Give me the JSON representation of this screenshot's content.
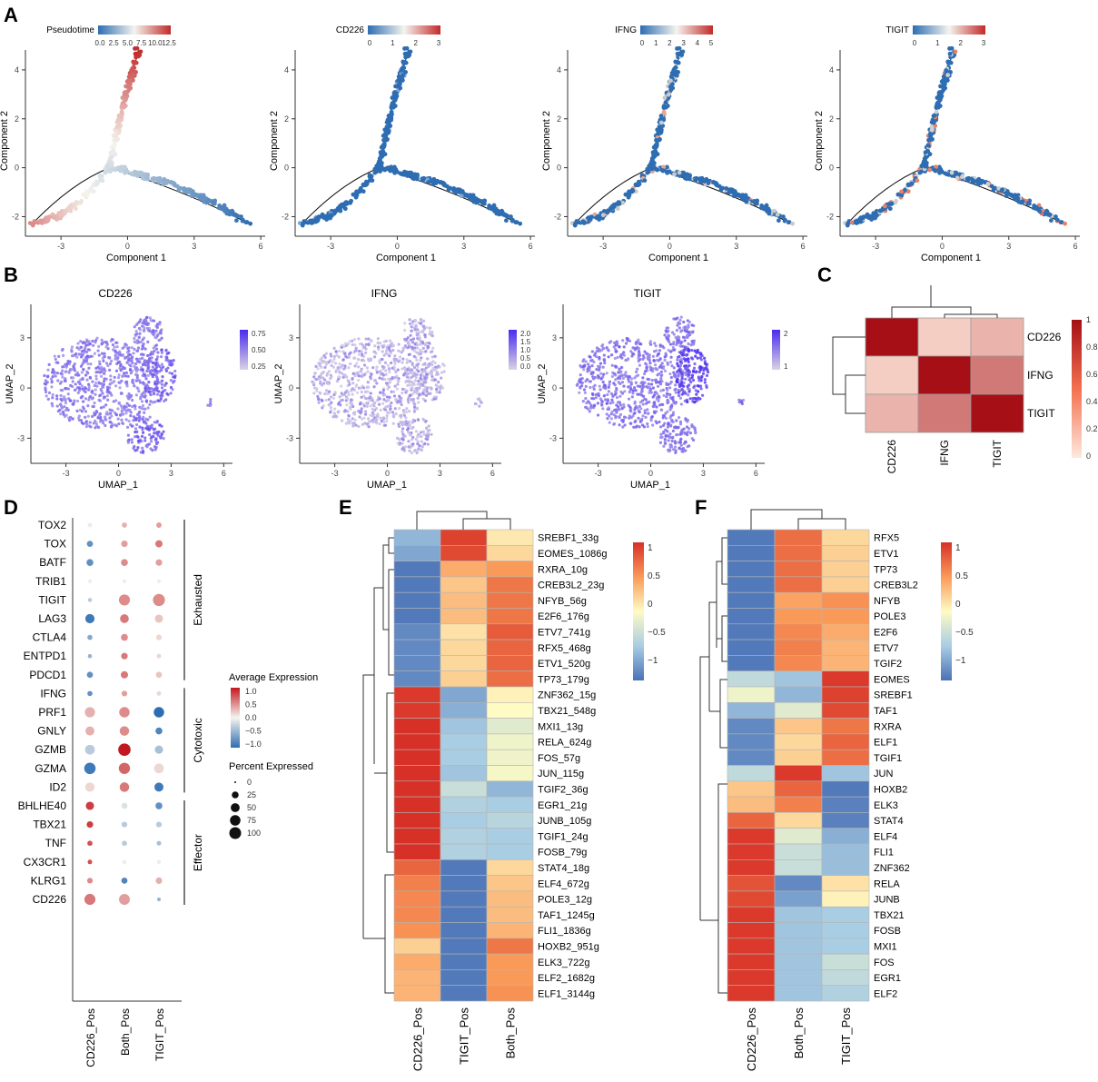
{
  "panels": {
    "A": "A",
    "B": "B",
    "C": "C",
    "D": "D",
    "E": "E",
    "F": "F"
  },
  "colors": {
    "low": "#2e6db2",
    "mid": "#f5f4ee",
    "high": "#c22a2a",
    "heat_low": "#4a7ab8",
    "heat_mid": "#fefbc4",
    "heat_high": "#d73027",
    "umap_low": "#d9d3e3",
    "umap_high": "#4b2bf0",
    "corr_low": "#fde3d6",
    "corr_high": "#a50f15"
  },
  "chart_data": [
    {
      "id": "A",
      "type": "scatter",
      "xlabel": "Component 1",
      "ylabel": "Component 2",
      "xticks": [
        "-3",
        "0",
        "3",
        "6"
      ],
      "yticks": [
        "-2",
        "0",
        "2",
        "4"
      ],
      "xlim": [
        -4.6,
        6.2
      ],
      "ylim": [
        -2.8,
        5.0
      ],
      "subplots": [
        {
          "legend_title": "Pseudotime",
          "legend_ticks": [
            "0.0",
            "2.5",
            "5.0",
            "7.5",
            "10.0",
            "12.5"
          ],
          "mode": "pseudotime"
        },
        {
          "legend_title": "CD226",
          "legend_ticks": [
            "0",
            "1",
            "2",
            "3"
          ],
          "mode": "low"
        },
        {
          "legend_title": "IFNG",
          "legend_ticks": [
            "0",
            "1",
            "2",
            "3",
            "4",
            "5"
          ],
          "mode": "mixed"
        },
        {
          "legend_title": "TIGIT",
          "legend_ticks": [
            "0",
            "1",
            "2",
            "3"
          ],
          "mode": "mixed2"
        }
      ]
    },
    {
      "id": "B",
      "type": "scatter",
      "xlabel": "UMAP_1",
      "ylabel": "UMAP_2",
      "xticks": [
        "-3",
        "0",
        "3",
        "6"
      ],
      "yticks": [
        "-3",
        "0",
        "3"
      ],
      "subplots": [
        {
          "title": "CD226",
          "legend_ticks": [
            "0.75",
            "0.50",
            "0.25"
          ],
          "mode": "cd226"
        },
        {
          "title": "IFNG",
          "legend_ticks": [
            "2.0",
            "1.5",
            "1.0",
            "0.5",
            "0.0"
          ],
          "mode": "ifng"
        },
        {
          "title": "TIGIT",
          "legend_ticks": [
            "2",
            "1"
          ],
          "mode": "tigit"
        }
      ]
    },
    {
      "id": "C",
      "type": "heatmap",
      "labels": [
        "CD226",
        "IFNG",
        "TIGIT"
      ],
      "values": [
        [
          1.0,
          0.1,
          0.22
        ],
        [
          0.1,
          1.0,
          0.5
        ],
        [
          0.22,
          0.5,
          1.0
        ]
      ],
      "legend_ticks": [
        "1",
        "0.8",
        "0.6",
        "0.4",
        "0.2",
        "0"
      ]
    },
    {
      "id": "D",
      "type": "scatter",
      "groups": [
        "CD226_Pos",
        "Both_Pos",
        "TIGIT_Pos"
      ],
      "genes": [
        "TOX2",
        "TOX",
        "BATF",
        "TRIB1",
        "TIGIT",
        "LAG3",
        "CTLA4",
        "ENTPD1",
        "PDCD1",
        "IFNG",
        "PRF1",
        "GNLY",
        "GZMB",
        "GZMA",
        "ID2",
        "BHLHE40",
        "TBX21",
        "TNF",
        "CX3CR1",
        "KLRG1",
        "CD226"
      ],
      "avg_expression": [
        [
          0.1,
          0.4,
          0.5
        ],
        [
          -0.8,
          0.5,
          0.7
        ],
        [
          -0.8,
          0.6,
          0.5
        ],
        [
          0.0,
          0.1,
          0.1
        ],
        [
          -0.3,
          0.6,
          0.6
        ],
        [
          -1.0,
          0.7,
          0.3
        ],
        [
          -0.6,
          0.6,
          0.2
        ],
        [
          -0.5,
          0.7,
          0.2
        ],
        [
          -0.8,
          0.7,
          0.3
        ],
        [
          -0.8,
          0.5,
          0.2
        ],
        [
          0.4,
          0.6,
          -1.1
        ],
        [
          0.4,
          0.6,
          -0.9
        ],
        [
          -0.3,
          1.2,
          -0.4
        ],
        [
          -1.0,
          0.8,
          0.2
        ],
        [
          0.2,
          0.7,
          -1.0
        ],
        [
          1.0,
          -0.1,
          -0.8
        ],
        [
          1.0,
          -0.3,
          -0.3
        ],
        [
          0.9,
          -0.3,
          -0.4
        ],
        [
          0.9,
          0.0,
          0.0
        ],
        [
          0.6,
          -0.9,
          0.4
        ],
        [
          0.7,
          0.5,
          -0.5
        ]
      ],
      "percent_expressed": [
        [
          4,
          6,
          7
        ],
        [
          10,
          12,
          16
        ],
        [
          14,
          14,
          12
        ],
        [
          2,
          2,
          2
        ],
        [
          3,
          46,
          56
        ],
        [
          30,
          26,
          22
        ],
        [
          6,
          14,
          8
        ],
        [
          3,
          12,
          4
        ],
        [
          10,
          16,
          10
        ],
        [
          6,
          8,
          4
        ],
        [
          38,
          40,
          40
        ],
        [
          28,
          32,
          14
        ],
        [
          34,
          60,
          22
        ],
        [
          50,
          48,
          34
        ],
        [
          30,
          32,
          28
        ],
        [
          22,
          10,
          14
        ],
        [
          12,
          8,
          8
        ],
        [
          6,
          6,
          4
        ],
        [
          4,
          3,
          3
        ],
        [
          8,
          10,
          12
        ],
        [
          46,
          44,
          2
        ]
      ],
      "brackets": [
        {
          "label": "Exhausted",
          "from": 0,
          "to": 8
        },
        {
          "label": "Cytotoxic",
          "from": 9,
          "to": 14
        },
        {
          "label": "Effector",
          "from": 15,
          "to": 20
        }
      ],
      "legend_color_title": "Average Expression",
      "legend_color_ticks": [
        "1.0",
        "0.5",
        "0.0",
        "−0.5",
        "−1.0"
      ],
      "legend_size_title": "Percent Expressed",
      "legend_size_ticks": [
        "0",
        "25",
        "50",
        "75",
        "100"
      ]
    },
    {
      "id": "E",
      "type": "heatmap",
      "columns": [
        "CD226_Pos",
        "TIGIT_Pos",
        "Both_Pos"
      ],
      "rows": [
        "SREBF1_33g",
        "EOMES_1086g",
        "RXRA_10g",
        "CREB3L2_23g",
        "NFYB_56g",
        "E2F6_176g",
        "ETV7_741g",
        "RFX5_468g",
        "ETV1_520g",
        "TP73_179g",
        "ZNF362_15g",
        "TBX21_548g",
        "MXI1_13g",
        "RELA_624g",
        "FOS_57g",
        "JUN_115g",
        "TGIF2_36g",
        "EGR1_21g",
        "JUNB_105g",
        "TGIF1_24g",
        "FOSB_79g",
        "STAT4_18g",
        "ELF4_672g",
        "POLE3_12g",
        "TAF1_1245g",
        "FLI1_1836g",
        "HOXB2_951g",
        "ELK3_722g",
        "ELF2_1682g",
        "ELF1_3144g"
      ],
      "values": [
        [
          -0.7,
          1.05,
          0.1
        ],
        [
          -0.8,
          1.0,
          0.2
        ],
        [
          -1.1,
          0.45,
          0.55
        ],
        [
          -1.1,
          0.3,
          0.75
        ],
        [
          -1.1,
          0.35,
          0.75
        ],
        [
          -1.1,
          0.35,
          0.75
        ],
        [
          -1.0,
          0.15,
          0.9
        ],
        [
          -1.0,
          0.2,
          0.85
        ],
        [
          -1.0,
          0.2,
          0.85
        ],
        [
          -1.0,
          0.25,
          0.8
        ],
        [
          1.1,
          -0.8,
          0.05
        ],
        [
          1.1,
          -0.75,
          0.0
        ],
        [
          1.15,
          -0.6,
          -0.2
        ],
        [
          1.15,
          -0.55,
          -0.1
        ],
        [
          1.15,
          -0.55,
          -0.1
        ],
        [
          1.15,
          -0.6,
          -0.05
        ],
        [
          1.15,
          -0.35,
          -0.7
        ],
        [
          1.15,
          -0.5,
          -0.55
        ],
        [
          1.15,
          -0.55,
          -0.45
        ],
        [
          1.15,
          -0.5,
          -0.55
        ],
        [
          1.15,
          -0.5,
          -0.55
        ],
        [
          0.85,
          -1.1,
          0.2
        ],
        [
          0.7,
          -1.1,
          0.3
        ],
        [
          0.65,
          -1.1,
          0.35
        ],
        [
          0.65,
          -1.1,
          0.35
        ],
        [
          0.6,
          -1.1,
          0.4
        ],
        [
          0.25,
          -1.1,
          0.75
        ],
        [
          0.45,
          -1.1,
          0.55
        ],
        [
          0.4,
          -1.1,
          0.55
        ],
        [
          0.4,
          -1.1,
          0.6
        ]
      ],
      "legend_ticks": [
        "1",
        "0.5",
        "0",
        "−0.5",
        "−1"
      ]
    },
    {
      "id": "F",
      "type": "heatmap",
      "columns": [
        "CD226_Pos",
        "Both_Pos",
        "TIGIT_Pos"
      ],
      "rows": [
        "RFX5",
        "ETV1",
        "TP73",
        "CREB3L2",
        "NFYB",
        "POLE3",
        "E2F6",
        "ETV7",
        "TGIF2",
        "EOMES",
        "SREBF1",
        "TAF1",
        "RXRA",
        "ELF1",
        "TGIF1",
        "JUN",
        "HOXB2",
        "ELK3",
        "STAT4",
        "ELF4",
        "FLI1",
        "ZNF362",
        "RELA",
        "JUNB",
        "TBX21",
        "FOSB",
        "MXI1",
        "FOS",
        "EGR1",
        "ELF2"
      ],
      "values": [
        [
          -1.1,
          0.8,
          0.2
        ],
        [
          -1.1,
          0.8,
          0.25
        ],
        [
          -1.1,
          0.8,
          0.25
        ],
        [
          -1.1,
          0.8,
          0.25
        ],
        [
          -1.1,
          0.5,
          0.6
        ],
        [
          -1.1,
          0.55,
          0.55
        ],
        [
          -1.1,
          0.65,
          0.45
        ],
        [
          -1.1,
          0.7,
          0.4
        ],
        [
          -1.1,
          0.65,
          0.4
        ],
        [
          -0.4,
          -0.6,
          1.1
        ],
        [
          -0.1,
          -0.7,
          1.05
        ],
        [
          -0.7,
          -0.2,
          1.0
        ],
        [
          -1.0,
          0.3,
          0.75
        ],
        [
          -1.0,
          0.2,
          0.85
        ],
        [
          -1.0,
          0.25,
          0.8
        ],
        [
          -0.4,
          1.1,
          -0.6
        ],
        [
          0.3,
          0.85,
          -1.1
        ],
        [
          0.35,
          0.7,
          -1.05
        ],
        [
          0.85,
          0.2,
          -1.05
        ],
        [
          1.1,
          -0.2,
          -0.75
        ],
        [
          1.1,
          -0.35,
          -0.65
        ],
        [
          1.1,
          -0.35,
          -0.65
        ],
        [
          0.95,
          -1.0,
          0.15
        ],
        [
          1.0,
          -0.85,
          0.05
        ],
        [
          1.1,
          -0.6,
          -0.55
        ],
        [
          1.1,
          -0.6,
          -0.55
        ],
        [
          1.1,
          -0.6,
          -0.55
        ],
        [
          1.1,
          -0.6,
          -0.35
        ],
        [
          1.1,
          -0.6,
          -0.4
        ],
        [
          1.1,
          -0.6,
          -0.5
        ]
      ],
      "legend_ticks": [
        "1",
        "0.5",
        "0",
        "−0.5",
        "−1"
      ]
    }
  ]
}
